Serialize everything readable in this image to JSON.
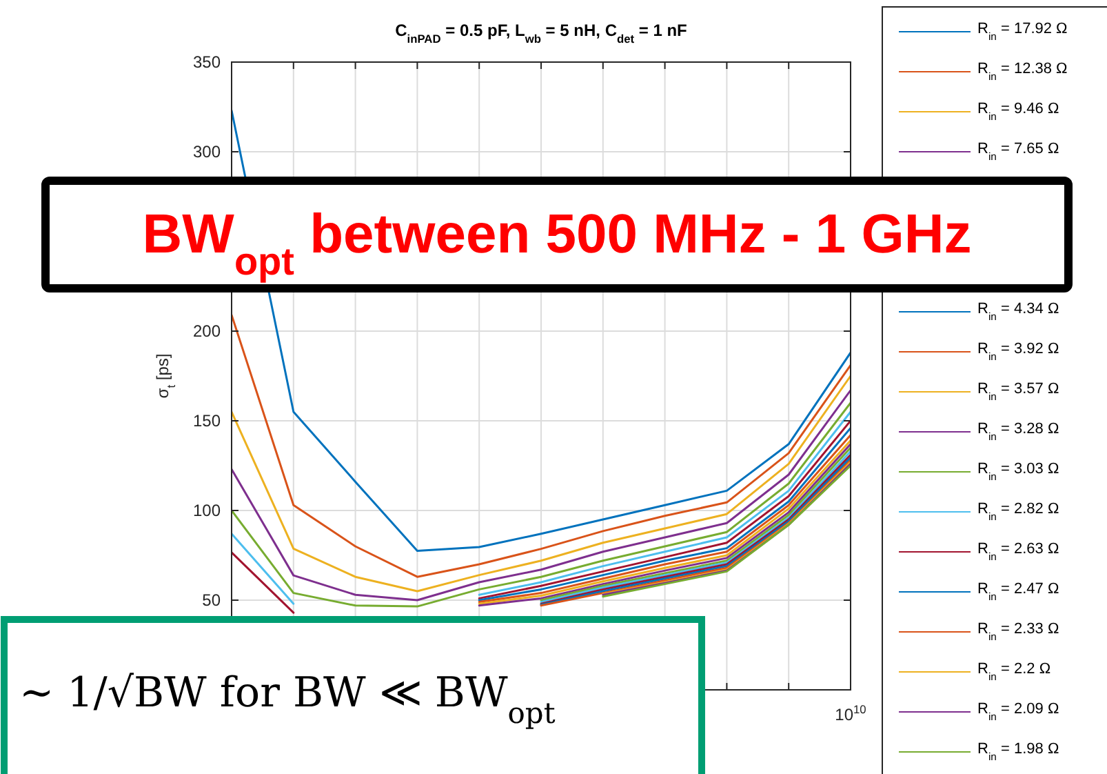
{
  "chart_data": {
    "type": "line",
    "title": "C$_{inPAD}$ = 0.5 pF, L$_{wb}$ = 5 nH, C$_{det}$ = 1 nF",
    "ylabel": "σ$_{t}$ [ps]",
    "annotations": [
      "BW$_{opt}$ between 500 MHz - 1 GHz",
      "∼ 1/√BW for BW ≪ BW$_{opt}$",
      "10$^{10}$"
    ],
    "categories": [
      null,
      null,
      null,
      null,
      null,
      null,
      null,
      null,
      null,
      null,
      null
    ],
    "ylim": [
      0,
      350
    ],
    "yticks": [
      50,
      100,
      150,
      200,
      300,
      350
    ],
    "grid": true,
    "legend": "right",
    "marker": "none",
    "line_style": "solid",
    "series": [
      {
        "name": "R$_{in}$ = 17.92 Ω",
        "color": "#0072bd",
        "values": [
          323,
          155,
          116,
          77.5,
          79.6,
          87,
          95,
          103,
          111,
          137,
          188
        ]
      },
      {
        "name": "R$_{in}$ = 12.38 Ω",
        "color": "#d95319",
        "values": [
          209,
          103,
          80,
          63,
          70,
          78.6,
          88.5,
          97,
          104.5,
          132,
          181
        ]
      },
      {
        "name": "R$_{in}$ = 9.46 Ω",
        "color": "#edb120",
        "values": [
          155,
          78.7,
          63,
          55,
          64,
          72,
          82,
          90,
          98,
          126,
          175
        ]
      },
      {
        "name": "R$_{in}$ = 7.65 Ω",
        "color": "#7e2f8e",
        "values": [
          123,
          63.8,
          53,
          50,
          60,
          67,
          77,
          85,
          93,
          120,
          167
        ]
      },
      {
        "color": "#77ac30",
        "values": [
          100,
          54,
          47,
          46.5,
          56,
          63,
          72,
          80,
          88,
          115,
          160
        ]
      },
      {
        "color": "#4dbeee",
        "values": [
          87,
          48,
          null,
          null,
          53,
          60,
          69,
          77,
          85,
          111,
          155
        ]
      },
      {
        "color": "#a2142f",
        "values": [
          76.6,
          43,
          null,
          null,
          51,
          58,
          66,
          74,
          82,
          108,
          150
        ]
      },
      {
        "name": "R$_{in}$ = 4.34 Ω",
        "color": "#0072bd",
        "values": [
          null,
          null,
          null,
          null,
          50,
          56,
          64,
          72,
          79,
          105,
          146
        ]
      },
      {
        "name": "R$_{in}$ = 3.92 Ω",
        "color": "#d95319",
        "values": [
          null,
          null,
          null,
          null,
          49,
          54,
          62,
          70,
          77,
          103,
          142
        ]
      },
      {
        "name": "R$_{in}$ = 3.57 Ω",
        "color": "#edb120",
        "values": [
          null,
          null,
          null,
          null,
          48,
          52.5,
          60.5,
          68,
          75,
          101,
          139
        ]
      },
      {
        "name": "R$_{in}$ = 3.28 Ω",
        "color": "#7e2f8e",
        "values": [
          null,
          null,
          null,
          null,
          47,
          51,
          59,
          66.5,
          73.5,
          99,
          137
        ]
      },
      {
        "name": "R$_{in}$ = 3.03 Ω",
        "color": "#77ac30",
        "values": [
          null,
          null,
          null,
          null,
          null,
          50,
          58,
          65,
          72,
          97.5,
          135
        ]
      },
      {
        "name": "R$_{in}$ = 2.82 Ω",
        "color": "#4dbeee",
        "values": [
          null,
          null,
          null,
          null,
          null,
          49,
          57,
          64,
          71,
          96,
          133
        ]
      },
      {
        "name": "R$_{in}$ = 2.63 Ω",
        "color": "#a2142f",
        "values": [
          null,
          null,
          null,
          null,
          null,
          48,
          56,
          63,
          70,
          95,
          131
        ]
      },
      {
        "name": "R$_{in}$ = 2.47 Ω",
        "color": "#0072bd",
        "values": [
          null,
          null,
          null,
          null,
          null,
          47.5,
          55,
          62,
          69,
          94,
          129.5
        ]
      },
      {
        "name": "R$_{in}$ = 2.33 Ω",
        "color": "#d95319",
        "values": [
          null,
          null,
          null,
          null,
          null,
          47,
          54,
          61,
          68,
          93,
          128
        ]
      },
      {
        "name": "R$_{in}$ = 2.2 Ω",
        "color": "#edb120",
        "values": [
          null,
          null,
          null,
          null,
          null,
          null,
          53.5,
          60,
          67,
          92.5,
          127
        ]
      },
      {
        "name": "R$_{in}$ = 2.09 Ω",
        "color": "#7e2f8e",
        "values": [
          null,
          null,
          null,
          null,
          null,
          null,
          53,
          59.5,
          66.5,
          92,
          126
        ]
      },
      {
        "name": "R$_{in}$ = 1.98 Ω",
        "color": "#77ac30",
        "values": [
          null,
          null,
          null,
          null,
          null,
          null,
          52,
          59,
          66,
          92,
          125
        ]
      }
    ]
  }
}
